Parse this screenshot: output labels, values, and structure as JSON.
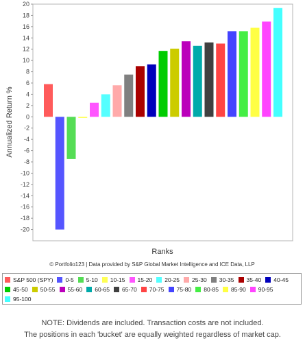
{
  "chart_data": {
    "type": "bar",
    "ylabel": "Annualized Return %",
    "xlabel": "Ranks",
    "ylim": [
      -22,
      20
    ],
    "yticks": [
      20,
      18,
      16,
      14,
      12,
      10,
      8,
      6,
      4,
      2,
      0,
      -2,
      -4,
      -6,
      -8,
      -10,
      -12,
      -14,
      -16,
      -18,
      -20
    ],
    "grid": false,
    "legend_position": "bottom",
    "categories": [
      "S&P 500 (SPY)",
      "0-5",
      "5-10",
      "10-15",
      "15-20",
      "20-25",
      "25-30",
      "30-35",
      "35-40",
      "40-45",
      "45-50",
      "50-55",
      "55-60",
      "60-65",
      "65-70",
      "70-75",
      "75-80",
      "80-85",
      "85-90",
      "90-95",
      "95-100"
    ],
    "values": [
      5.8,
      -20.0,
      -7.5,
      -0.2,
      2.5,
      4.0,
      5.6,
      7.5,
      9.0,
      9.3,
      11.7,
      12.1,
      13.4,
      12.6,
      13.2,
      13.0,
      15.2,
      15.2,
      15.8,
      16.9,
      19.3
    ],
    "colors": [
      "#ff5b5b",
      "#5555ff",
      "#55dd55",
      "#ffff55",
      "#ff55ff",
      "#55ffff",
      "#ffaaaa",
      "#808080",
      "#aa0000",
      "#0000bb",
      "#00cc00",
      "#cccc00",
      "#bb00bb",
      "#00aaaa",
      "#404040",
      "#ff4444",
      "#4444ff",
      "#44ee44",
      "#ffff44",
      "#ff44ff",
      "#44ffff"
    ],
    "credit": "© Portfolio123 | Data provided by S&P Global Market Intelligence and ICE Data, LLP"
  },
  "note": {
    "line1": "NOTE: Dividends are included. Transaction costs are not included.",
    "line2": "The positions in each 'bucket' are equally weighted regardless of market cap."
  }
}
